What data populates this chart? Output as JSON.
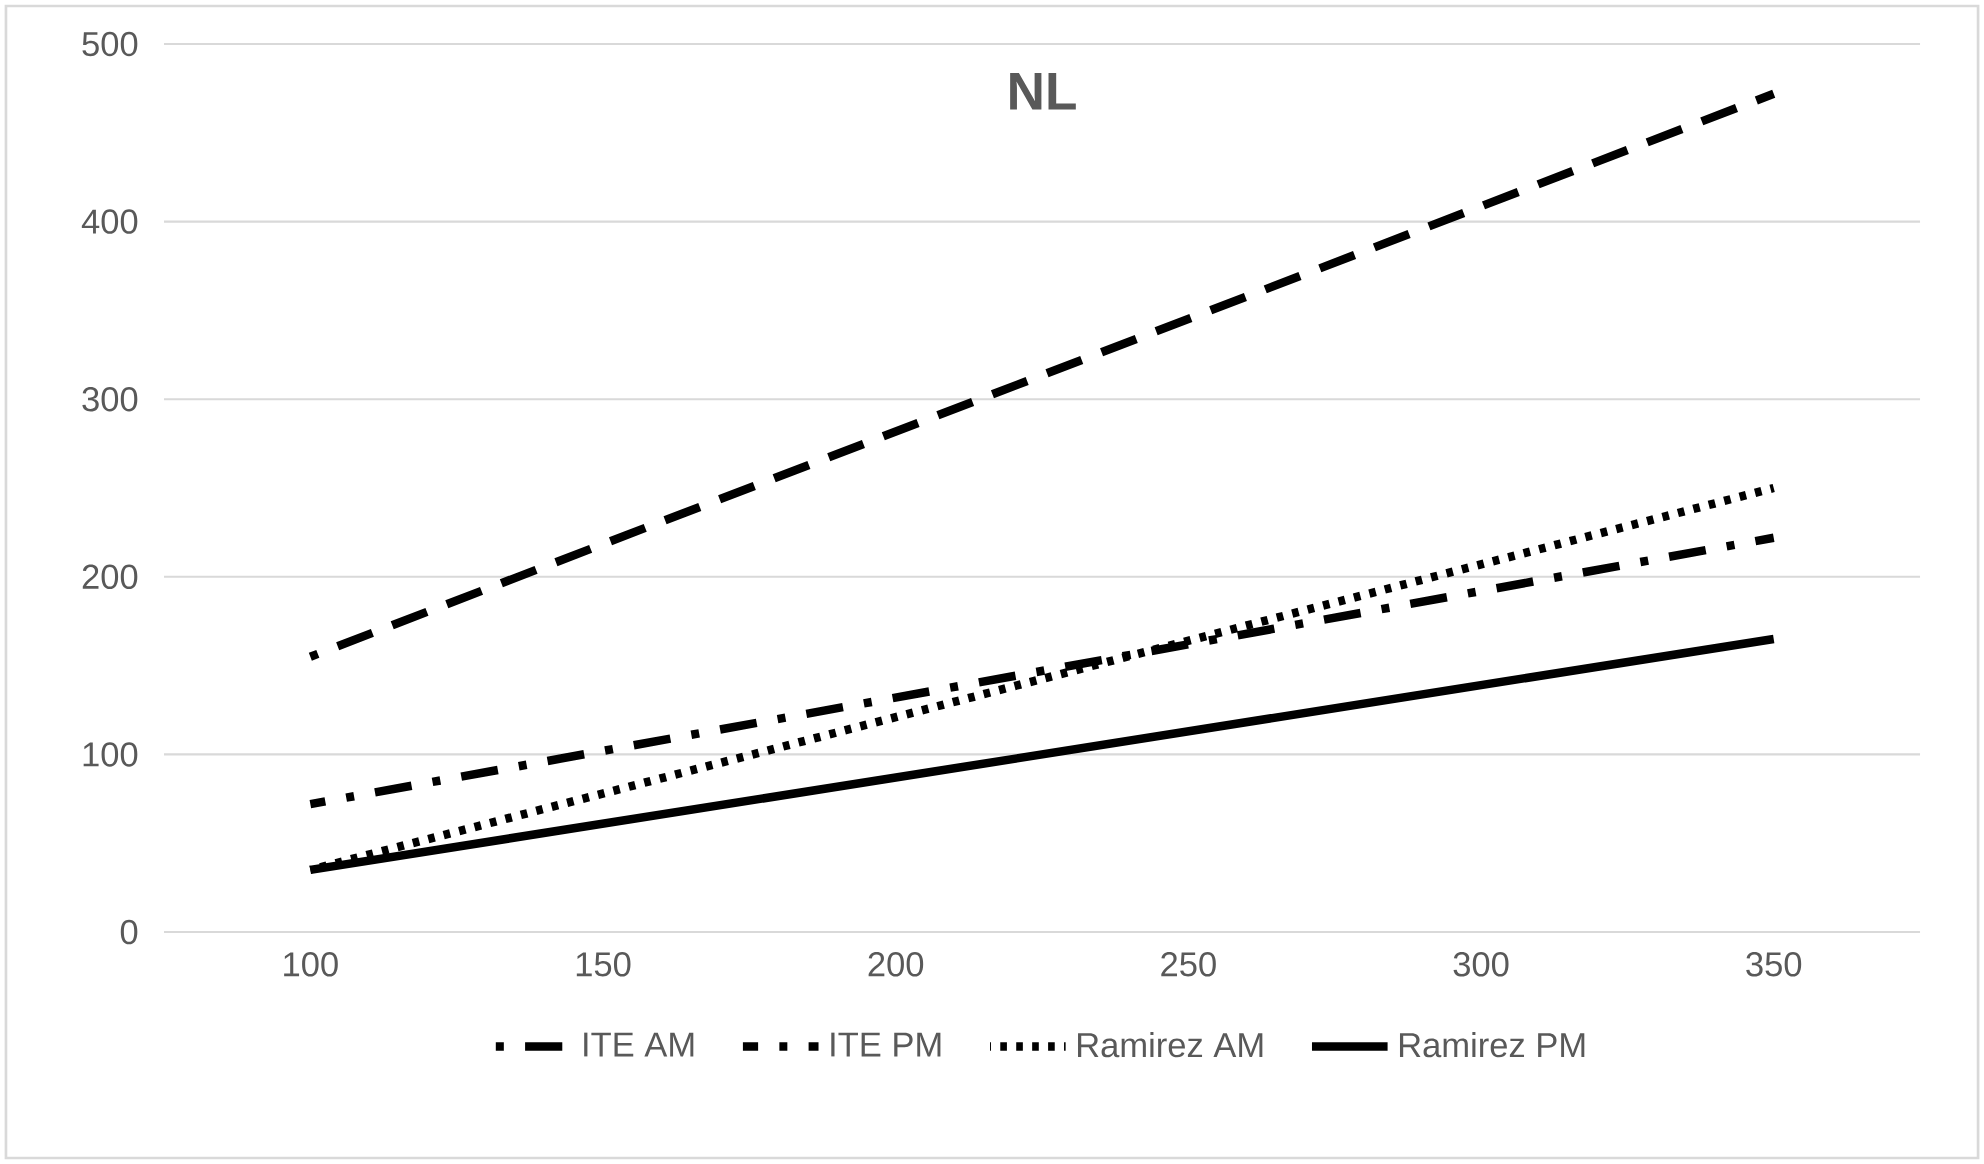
{
  "chart_data": {
    "type": "line",
    "title": "NL",
    "x": [
      100,
      350
    ],
    "xlim": [
      75,
      375
    ],
    "xticks": [
      100,
      150,
      200,
      250,
      300,
      350
    ],
    "ylim": [
      0,
      500
    ],
    "yticks": [
      0,
      100,
      200,
      300,
      400,
      500
    ],
    "grid": "y",
    "legend": "bottom",
    "marker": "none",
    "series": [
      {
        "name": "ITE AM",
        "color": "#000000",
        "line_style": "dashed",
        "values": [
          155,
          472
        ]
      },
      {
        "name": "ITE PM",
        "color": "#000000",
        "line_style": "dashdot",
        "values": [
          72,
          222
        ]
      },
      {
        "name": "Ramirez AM",
        "color": "#000000",
        "line_style": "dotted",
        "values": [
          35,
          250
        ]
      },
      {
        "name": "Ramirez PM",
        "color": "#000000",
        "line_style": "solid",
        "values": [
          35,
          165
        ]
      }
    ]
  }
}
